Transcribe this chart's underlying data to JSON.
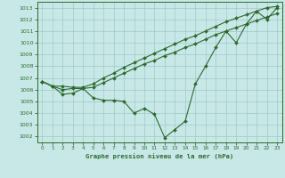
{
  "x": [
    0,
    1,
    2,
    3,
    4,
    5,
    6,
    7,
    8,
    9,
    10,
    11,
    12,
    13,
    14,
    15,
    16,
    17,
    18,
    19,
    20,
    21,
    22,
    23
  ],
  "upper": [
    1006.7,
    1006.3,
    1006.3,
    1006.2,
    1006.2,
    1006.5,
    1007.0,
    1007.4,
    1007.9,
    1008.3,
    1008.7,
    1009.1,
    1009.5,
    1009.9,
    1010.3,
    1010.6,
    1011.0,
    1011.4,
    1011.8,
    1012.1,
    1012.4,
    1012.7,
    1013.0,
    1013.1
  ],
  "mid": [
    1006.7,
    1006.3,
    1006.0,
    1006.1,
    1006.1,
    1006.2,
    1006.6,
    1007.0,
    1007.4,
    1007.8,
    1008.2,
    1008.5,
    1008.9,
    1009.2,
    1009.6,
    1009.9,
    1010.3,
    1010.7,
    1011.0,
    1011.3,
    1011.6,
    1011.9,
    1012.2,
    1012.5
  ],
  "lower": [
    1006.7,
    1006.3,
    1005.6,
    1005.7,
    1006.1,
    1005.3,
    1005.1,
    1005.1,
    1005.0,
    1004.0,
    1004.4,
    1003.9,
    1001.9,
    1002.6,
    1003.3,
    1006.5,
    1008.0,
    1009.6,
    1011.0,
    1010.0,
    1011.6,
    1012.7,
    1012.0,
    1013.0
  ],
  "line_color": "#2d6a2d",
  "bg_color": "#c8e8e8",
  "grid_color": "#a0c8c8",
  "xlabel": "Graphe pression niveau de la mer (hPa)",
  "ylim": [
    1001.5,
    1013.5
  ],
  "yticks": [
    1002,
    1003,
    1004,
    1005,
    1006,
    1007,
    1008,
    1009,
    1010,
    1011,
    1012,
    1013
  ],
  "xticks": [
    0,
    1,
    2,
    3,
    4,
    5,
    6,
    7,
    8,
    9,
    10,
    11,
    12,
    13,
    14,
    15,
    16,
    17,
    18,
    19,
    20,
    21,
    22,
    23
  ],
  "xlim": [
    -0.5,
    23.5
  ]
}
